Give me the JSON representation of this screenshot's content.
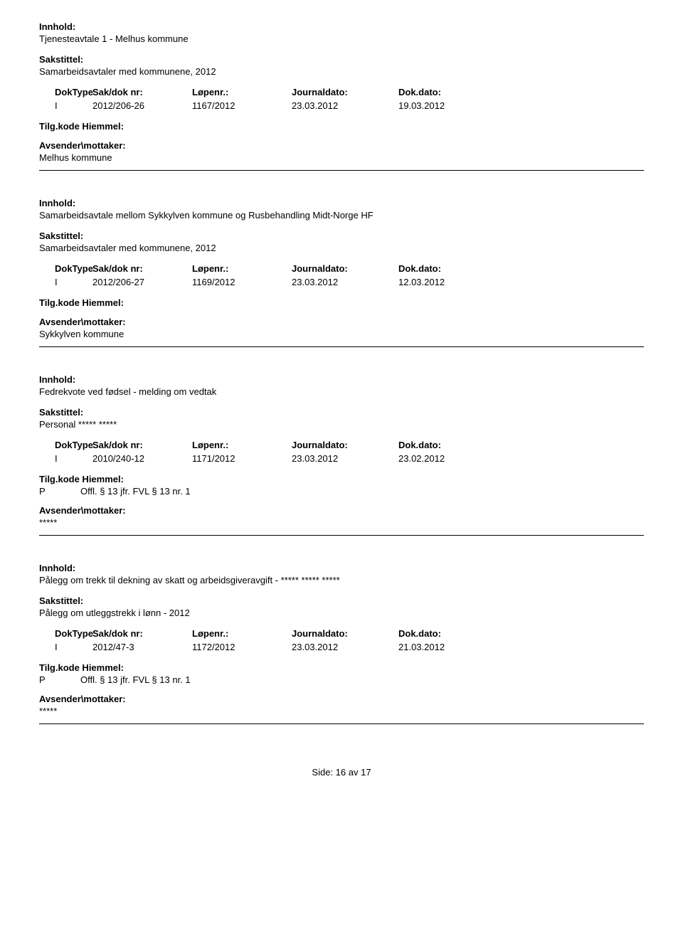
{
  "labels": {
    "innhold": "Innhold:",
    "sakstittel": "Sakstittel:",
    "doktype": "DokType",
    "saknr": "Sak/dok nr:",
    "lopenr": "Løpenr.:",
    "journaldato": "Journaldato:",
    "dokdato": "Dok.dato:",
    "tilgkode": "Tilg.kode",
    "hiemmel": "Hiemmel:",
    "avsender": "Avsender\\mottaker:"
  },
  "entries": [
    {
      "innhold": "Tjenesteavtale 1 - Melhus kommune",
      "sakstittel": "Samarbeidsavtaler med kommunene, 2012",
      "doktype": "I",
      "saknr": "2012/206-26",
      "lopenr": "1167/2012",
      "journaldato": "23.03.2012",
      "dokdato": "19.03.2012",
      "tilgcode": "",
      "hiemmel_text": "",
      "avsender": "Melhus kommune"
    },
    {
      "innhold": "Samarbeidsavtale mellom Sykkylven kommune og Rusbehandling Midt-Norge HF",
      "sakstittel": "Samarbeidsavtaler med kommunene, 2012",
      "doktype": "I",
      "saknr": "2012/206-27",
      "lopenr": "1169/2012",
      "journaldato": "23.03.2012",
      "dokdato": "12.03.2012",
      "tilgcode": "",
      "hiemmel_text": "",
      "avsender": "Sykkylven kommune"
    },
    {
      "innhold": "Fedrekvote ved fødsel - melding om vedtak",
      "sakstittel": "Personal ***** *****",
      "doktype": "I",
      "saknr": "2010/240-12",
      "lopenr": "1171/2012",
      "journaldato": "23.03.2012",
      "dokdato": "23.02.2012",
      "tilgcode": "P",
      "hiemmel_text": "Offl. § 13 jfr. FVL § 13 nr. 1",
      "avsender": "*****"
    },
    {
      "innhold": "Pålegg om trekk til dekning av skatt og arbeidsgiveravgift - ***** ***** *****",
      "sakstittel": "Pålegg om utleggstrekk i lønn - 2012",
      "doktype": "I",
      "saknr": "2012/47-3",
      "lopenr": "1172/2012",
      "journaldato": "23.03.2012",
      "dokdato": "21.03.2012",
      "tilgcode": "P",
      "hiemmel_text": "Offl. § 13 jfr. FVL § 13 nr. 1",
      "avsender": "*****"
    }
  ],
  "footer": {
    "label": "Side:",
    "page": "16",
    "sep": "av",
    "total": "17"
  }
}
